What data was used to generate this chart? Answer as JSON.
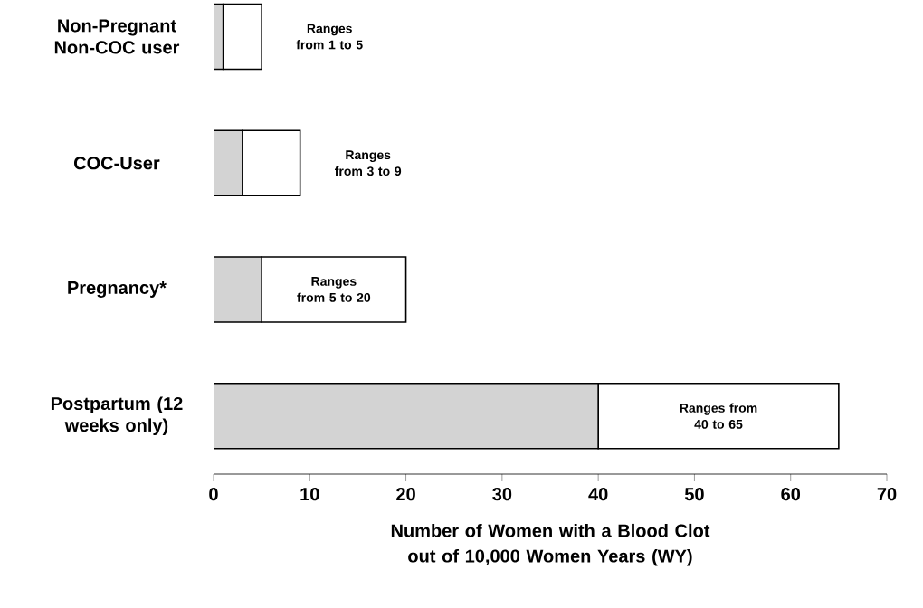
{
  "chart_data": {
    "type": "bar",
    "orientation": "horizontal",
    "stacked": true,
    "categories": [
      "Non-Pregnant Non-COC user",
      "COC-User",
      "Pregnancy*",
      "Postpartum (12 weeks only)"
    ],
    "series": [
      {
        "color": "#d3d3d3",
        "values": [
          1,
          3,
          5,
          40
        ]
      },
      {
        "color": "#ffffff",
        "values": [
          4,
          6,
          15,
          25
        ],
        "value_labels": [
          "Ranges from 1 to 5",
          "Ranges from 3 to 9",
          "Ranges from 5 to 20",
          "Ranges from 40 to 65"
        ]
      }
    ],
    "xlim": [
      0,
      70
    ],
    "xticks": [
      0,
      10,
      20,
      30,
      40,
      50,
      60,
      70
    ],
    "xlabel": "Number of Women with a Blood Clot out of 10,000 Women Years (WY)"
  }
}
